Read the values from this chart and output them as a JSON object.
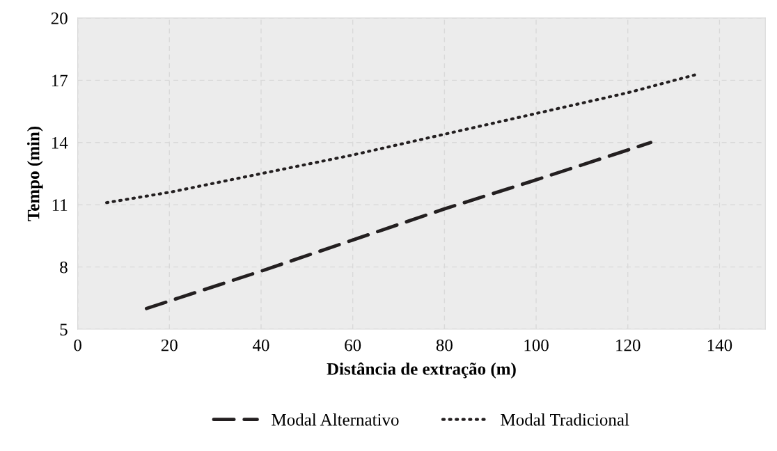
{
  "chart_data": {
    "type": "line",
    "xlabel": "Distância de extração (m)",
    "ylabel": "Tempo (min)",
    "xlim": [
      0,
      150
    ],
    "xticks": [
      0,
      20,
      40,
      60,
      80,
      100,
      120,
      140
    ],
    "ylim": [
      5,
      20
    ],
    "yticks": [
      5,
      8,
      11,
      14,
      17,
      20
    ],
    "grid": true,
    "legend": "bottom",
    "marker": "none",
    "series": [
      {
        "name": "Modal Alternativo",
        "color": "#231f20",
        "line_style": "dashed",
        "x": [
          15,
          40,
          60,
          80,
          100,
          125
        ],
        "values": [
          6.0,
          7.8,
          9.3,
          10.8,
          12.2,
          14.0
        ]
      },
      {
        "name": "Modal Tradicional",
        "color": "#231f20",
        "line_style": "dotted",
        "x": [
          6.3,
          20,
          40,
          60,
          80,
          100,
          120,
          135.3
        ],
        "values": [
          11.1,
          11.6,
          12.5,
          13.4,
          14.4,
          15.4,
          16.4,
          17.3
        ]
      }
    ]
  }
}
